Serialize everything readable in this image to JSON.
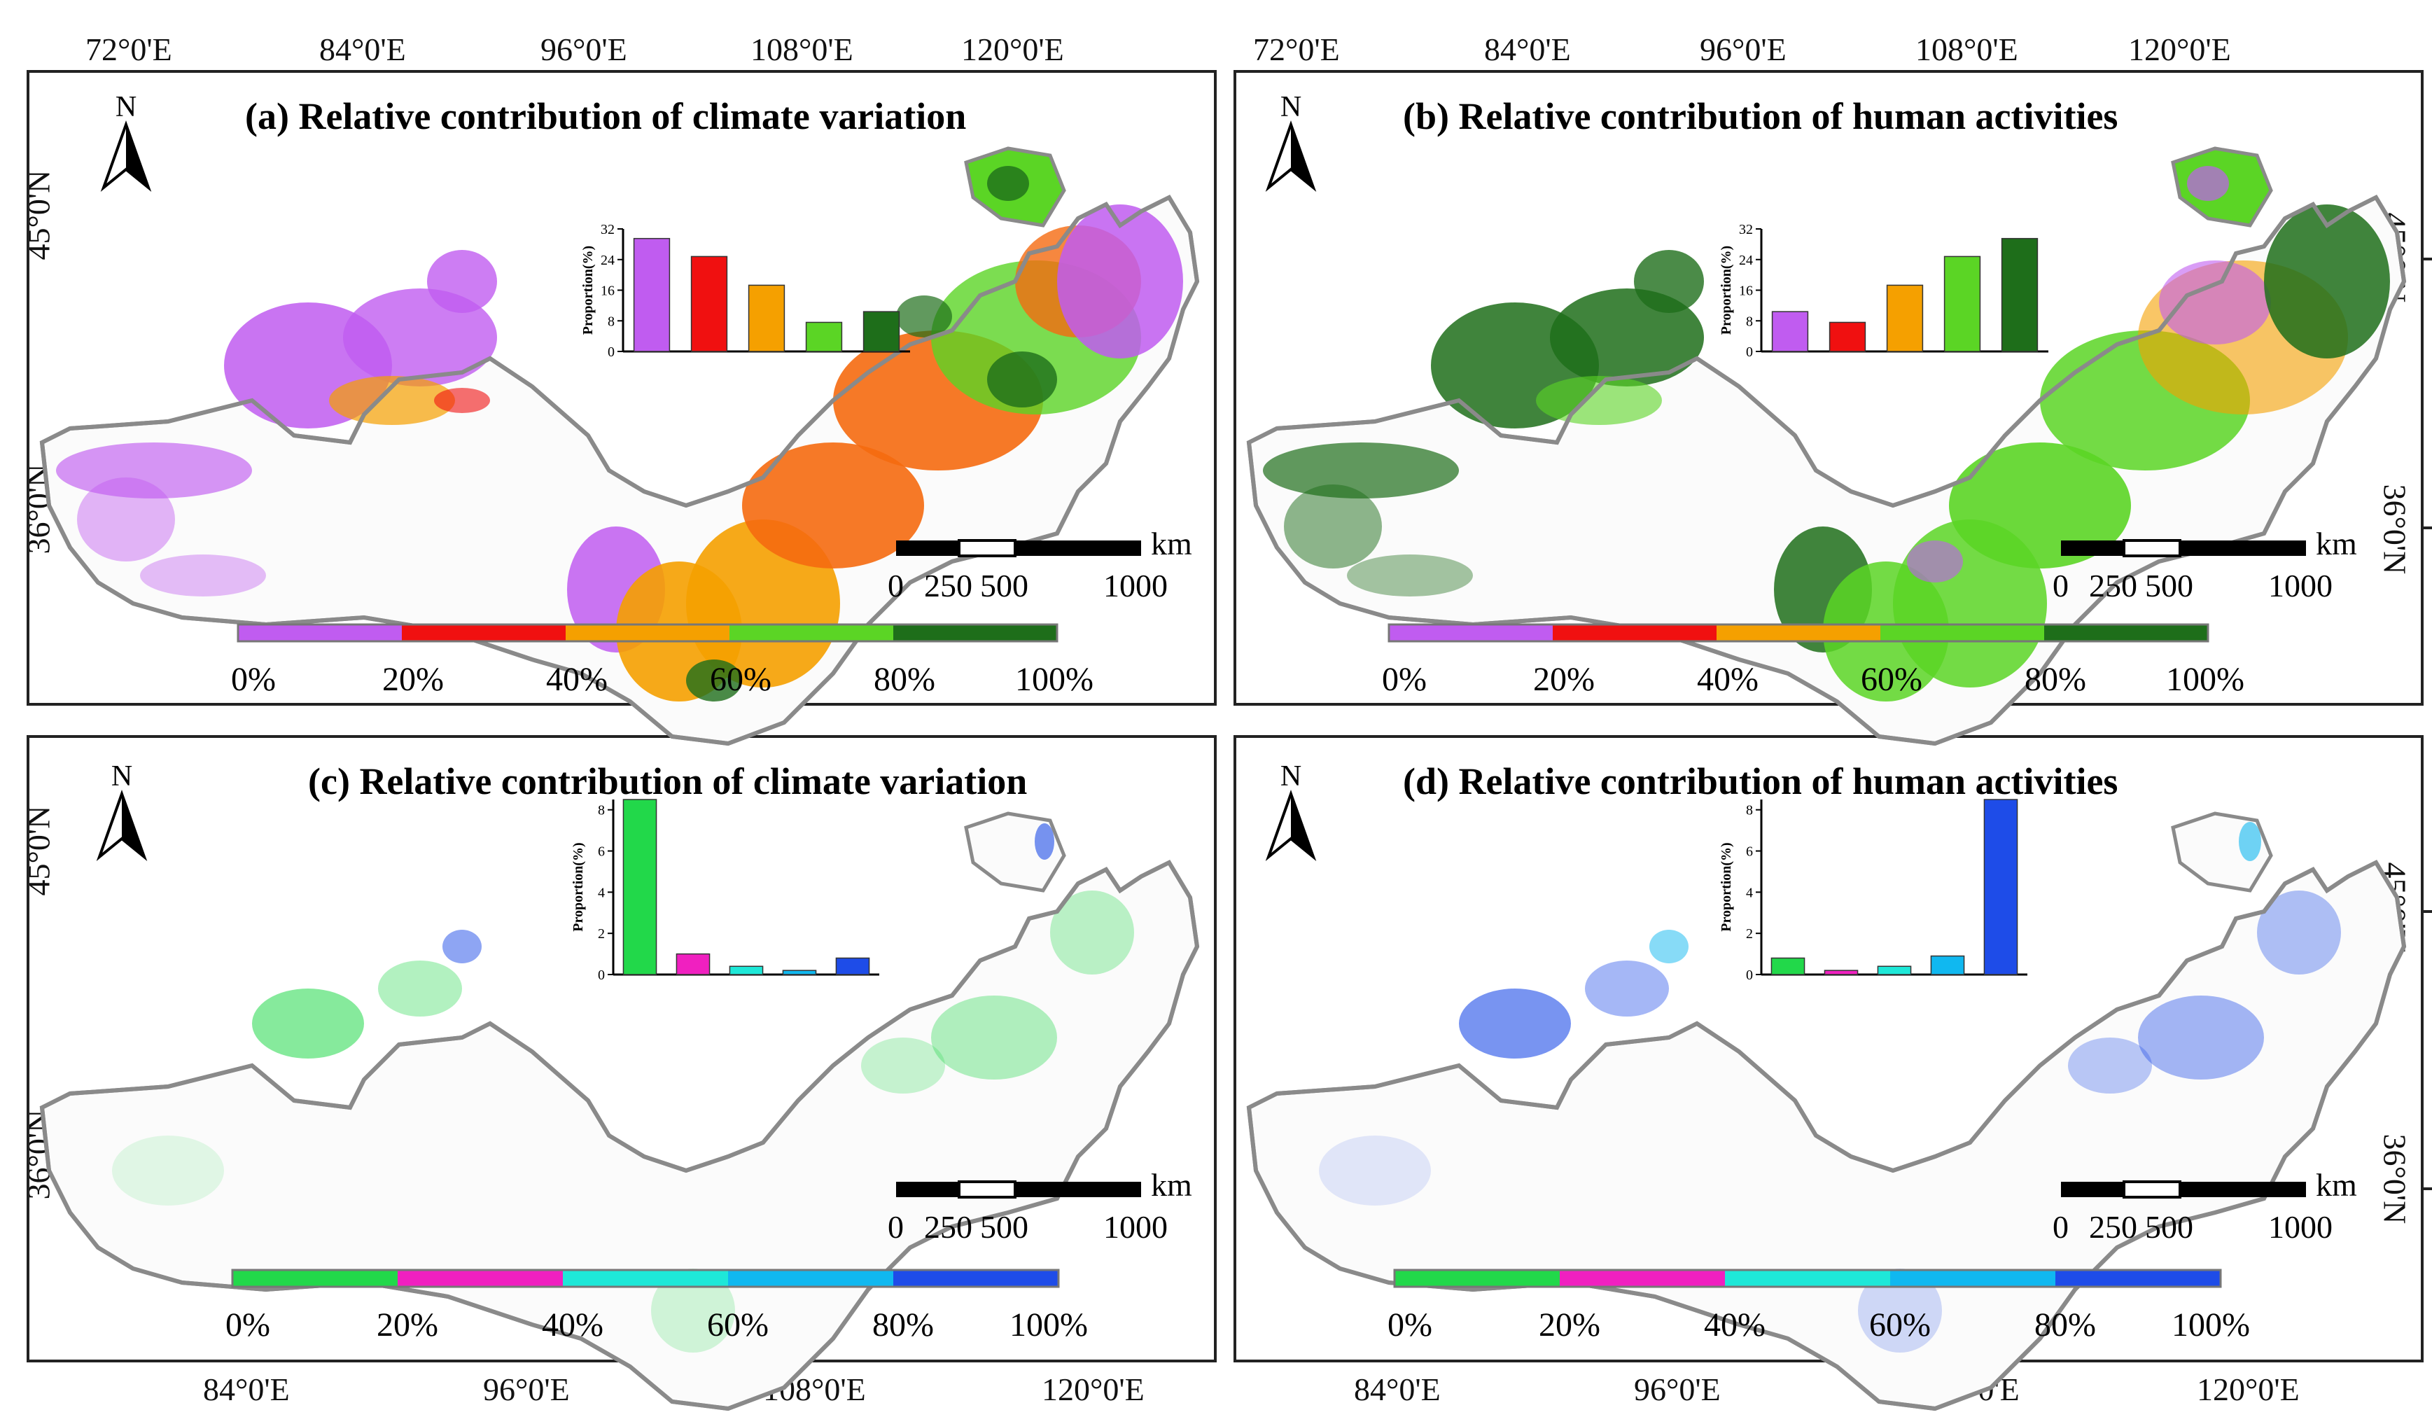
{
  "figure": {
    "lon_labels_top": [
      "72°0'E",
      "84°0'E",
      "96°0'E",
      "108°0'E",
      "120°0'E"
    ],
    "lon_labels_bottom": [
      "84°0'E",
      "96°0'E",
      "108°0'E",
      "120°0'E"
    ],
    "lat_labels": [
      "45°0'N",
      "36°0'N"
    ],
    "north_label": "N",
    "scale_bar": {
      "unit": "km",
      "ticks": [
        "0",
        "250",
        "500",
        "1000"
      ]
    },
    "legend_ticks": [
      "0%",
      "20%",
      "40%",
      "60%",
      "80%",
      "100%"
    ],
    "inset_ylabel": "Proportion(%)"
  },
  "colors": {
    "top_classes": [
      "#c05cf0",
      "#f01010",
      "#f5a000",
      "#5bd525",
      "#1e6e1a"
    ],
    "bottom_classes": [
      "#22d84a",
      "#f020c0",
      "#1ee8d8",
      "#10b8f0",
      "#1e4ce8"
    ],
    "boundary": "#8a8a8a"
  },
  "panels": [
    {
      "id": "a",
      "label": "(a)",
      "title": "Relative contribution of climate variation"
    },
    {
      "id": "b",
      "label": "(b)",
      "title": "Relative contribution of human activities"
    },
    {
      "id": "c",
      "label": "(c)",
      "title": "Relative contribution of climate variation"
    },
    {
      "id": "d",
      "label": "(d)",
      "title": "Relative contribution of human activities"
    }
  ],
  "chart_data": [
    {
      "type": "bar",
      "panel": "a",
      "ylabel": "Proportion(%)",
      "categories": [
        "0-20%",
        "20-40%",
        "40-60%",
        "60-80%",
        "80-100%"
      ],
      "values": [
        29.5,
        24.8,
        17.3,
        7.6,
        10.4
      ],
      "ylim": [
        0,
        32
      ],
      "yticks": [
        0,
        8,
        16,
        24,
        32
      ]
    },
    {
      "type": "bar",
      "panel": "b",
      "ylabel": "Proportion(%)",
      "categories": [
        "0-20%",
        "20-40%",
        "40-60%",
        "60-80%",
        "80-100%"
      ],
      "values": [
        10.4,
        7.6,
        17.3,
        24.8,
        29.5
      ],
      "ylim": [
        0,
        32
      ],
      "yticks": [
        0,
        8,
        16,
        24,
        32
      ]
    },
    {
      "type": "bar",
      "panel": "c",
      "ylabel": "Proportion(%)",
      "categories": [
        "0-20%",
        "20-40%",
        "40-60%",
        "60-80%",
        "80-100%"
      ],
      "values": [
        8.5,
        1.0,
        0.4,
        0.2,
        0.8
      ],
      "ylim": [
        0,
        8.5
      ],
      "yticks": [
        0,
        2,
        4,
        6,
        8
      ]
    },
    {
      "type": "bar",
      "panel": "d",
      "ylabel": "Proportion(%)",
      "categories": [
        "0-20%",
        "20-40%",
        "40-60%",
        "60-80%",
        "80-100%"
      ],
      "values": [
        0.8,
        0.2,
        0.4,
        0.9,
        8.5
      ],
      "ylim": [
        0,
        8.5
      ],
      "yticks": [
        0,
        2,
        4,
        6,
        8
      ]
    }
  ]
}
